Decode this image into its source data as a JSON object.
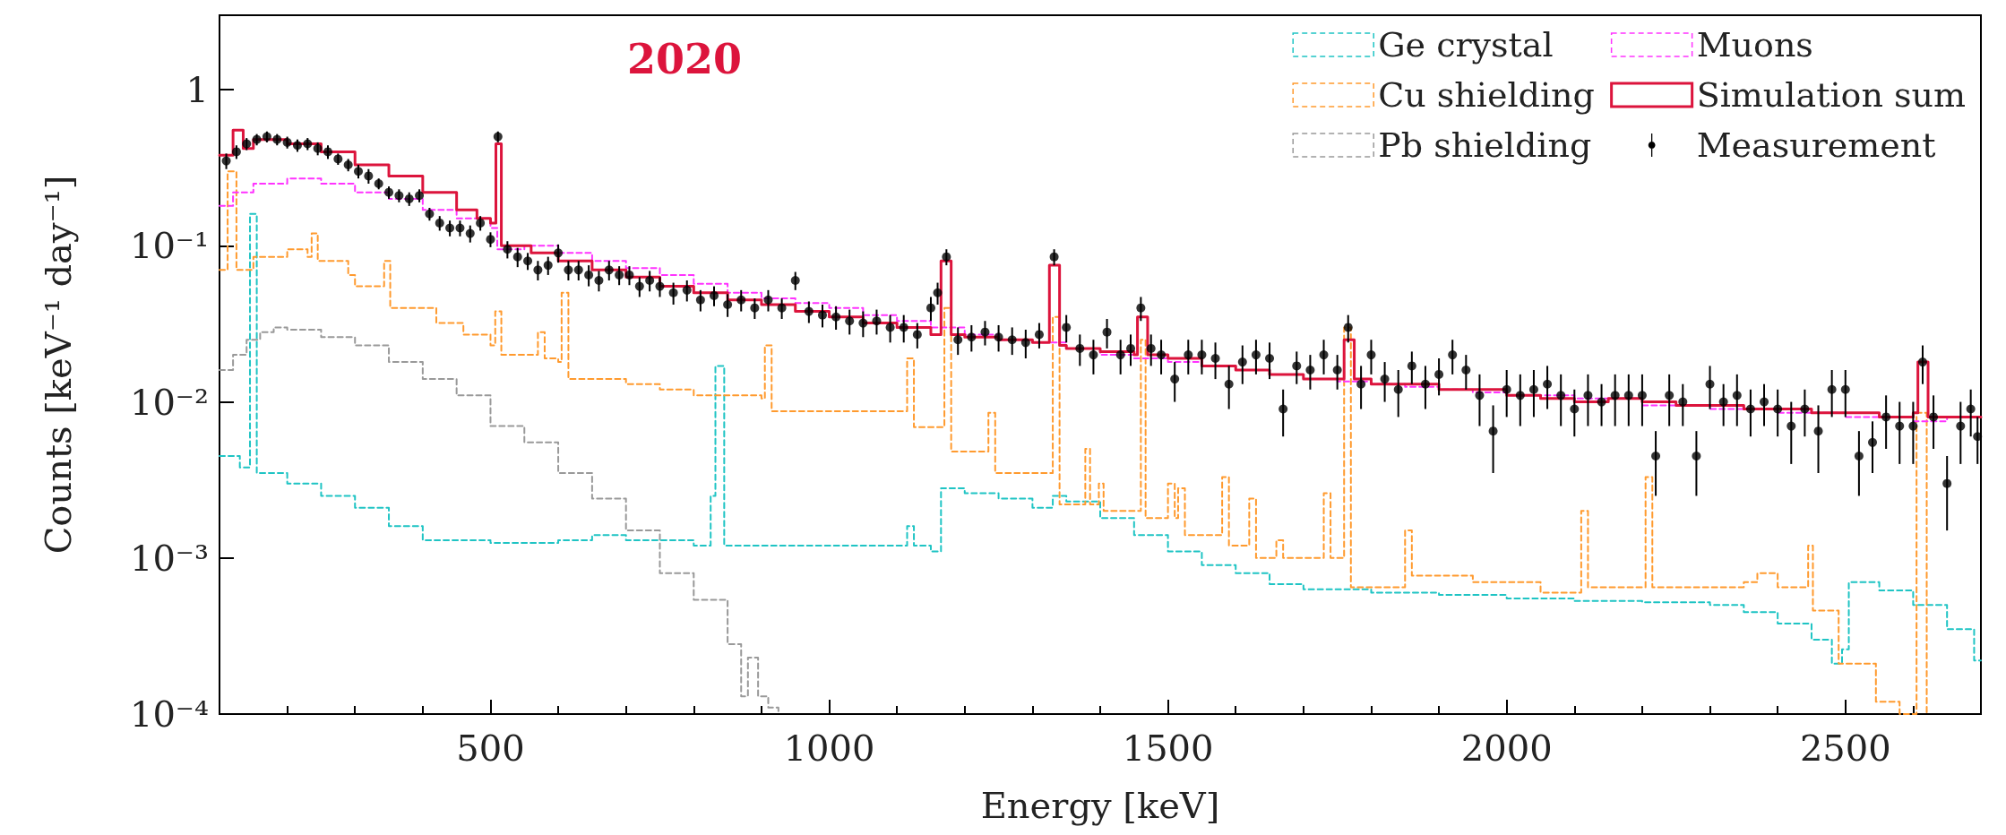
{
  "chart_data": {
    "type": "step",
    "title": "2020",
    "xlabel": "Energy [keV]",
    "ylabel": "Counts [keV⁻¹ day⁻¹]",
    "xlim": [
      100,
      2700
    ],
    "xticks": [
      {
        "value": 200,
        "label": null
      },
      {
        "value": 300,
        "label": null
      },
      {
        "value": 400,
        "label": null
      },
      500,
      {
        "value": 600,
        "label": null
      },
      {
        "value": 700,
        "label": null
      },
      {
        "value": 800,
        "label": null
      },
      {
        "value": 900,
        "label": null
      },
      1000,
      {
        "value": 1100,
        "label": null
      },
      {
        "value": 1200,
        "label": null
      },
      {
        "value": 1300,
        "label": null
      },
      {
        "value": 1400,
        "label": null
      },
      1500,
      {
        "value": 1600,
        "label": null
      },
      {
        "value": 1700,
        "label": null
      },
      {
        "value": 1800,
        "label": null
      },
      {
        "value": 1900,
        "label": null
      },
      2000,
      {
        "value": 2100,
        "label": null
      },
      {
        "value": 2200,
        "label": null
      },
      {
        "value": 2300,
        "label": null
      },
      {
        "value": 2400,
        "label": null
      },
      2500,
      {
        "value": 2600,
        "label": null
      }
    ],
    "ylim": [
      0.0001,
      3
    ],
    "yticks": [
      {
        "value": 0.0001,
        "label": "10⁻⁴"
      },
      {
        "value": 0.001,
        "label": "10⁻³"
      },
      {
        "value": 0.01,
        "label": "10⁻²"
      },
      {
        "value": 0.1,
        "label": "10⁻¹"
      },
      1
    ],
    "log": "y",
    "grid": false,
    "legend": "top right",
    "series": [
      {
        "name": "Ge crystal",
        "type": "step",
        "line_style": "dashed",
        "color": "#1fc4c4",
        "x": [
          100,
          130,
          145,
          155,
          200,
          250,
          300,
          350,
          400,
          500,
          600,
          650,
          700,
          800,
          825,
          832,
          845,
          900,
          1000,
          1100,
          1115,
          1125,
          1150,
          1165,
          1200,
          1250,
          1300,
          1330,
          1350,
          1400,
          1450,
          1500,
          1550,
          1600,
          1650,
          1700,
          1800,
          1900,
          2000,
          2100,
          2200,
          2300,
          2350,
          2400,
          2450,
          2480,
          2495,
          2505,
          2550,
          2600,
          2650,
          2690,
          2700
        ],
        "values": [
          0.0045,
          0.0038,
          0.16,
          0.0035,
          0.003,
          0.0025,
          0.0021,
          0.0016,
          0.0013,
          0.00125,
          0.0013,
          0.0014,
          0.0013,
          0.0012,
          0.0025,
          0.017,
          0.0012,
          0.0012,
          0.0012,
          0.0012,
          0.0016,
          0.0012,
          0.0011,
          0.0028,
          0.0026,
          0.0024,
          0.0021,
          0.0025,
          0.0023,
          0.0018,
          0.0014,
          0.0011,
          0.0009,
          0.0008,
          0.00068,
          0.00063,
          0.0006,
          0.00058,
          0.00055,
          0.00053,
          0.00052,
          0.0005,
          0.00045,
          0.00038,
          0.0003,
          0.00021,
          0.00026,
          0.0007,
          0.00062,
          0.0005,
          0.00035,
          0.00022,
          0.00022
        ]
      },
      {
        "name": "Cu shielding",
        "type": "step",
        "line_style": "dashed",
        "color": "#ff9a2e",
        "x": [
          100,
          112,
          125,
          150,
          200,
          230,
          236,
          245,
          290,
          300,
          343,
          352,
          420,
          460,
          500,
          507,
          516,
          565,
          570,
          580,
          600,
          605,
          615,
          700,
          750,
          800,
          900,
          905,
          915,
          1000,
          1110,
          1115,
          1125,
          1165,
          1170,
          1180,
          1230,
          1235,
          1245,
          1325,
          1330,
          1340,
          1375,
          1378,
          1385,
          1398,
          1405,
          1455,
          1460,
          1467,
          1495,
          1500,
          1510,
          1515,
          1525,
          1575,
          1580,
          1590,
          1615,
          1620,
          1630,
          1655,
          1660,
          1670,
          1725,
          1730,
          1740,
          1760,
          1770,
          1845,
          1850,
          1860,
          1950,
          2050,
          2105,
          2110,
          2120,
          2200,
          2205,
          2215,
          2350,
          2370,
          2400,
          2440,
          2445,
          2452,
          2490,
          2545,
          2580,
          2605,
          2620
        ],
        "values": [
          0.07,
          0.3,
          0.07,
          0.085,
          0.095,
          0.085,
          0.12,
          0.08,
          0.065,
          0.055,
          0.08,
          0.04,
          0.032,
          0.027,
          0.023,
          0.038,
          0.02,
          0.02,
          0.028,
          0.019,
          0.018,
          0.05,
          0.014,
          0.013,
          0.012,
          0.011,
          0.0105,
          0.023,
          0.0087,
          0.0087,
          0.0087,
          0.019,
          0.0069,
          0.0069,
          0.04,
          0.0048,
          0.0048,
          0.0085,
          0.0035,
          0.0035,
          0.035,
          0.0022,
          0.0022,
          0.005,
          0.0022,
          0.003,
          0.002,
          0.002,
          0.025,
          0.0018,
          0.0018,
          0.003,
          0.0018,
          0.0028,
          0.0014,
          0.0014,
          0.0033,
          0.0012,
          0.0012,
          0.0024,
          0.001,
          0.001,
          0.0013,
          0.001,
          0.001,
          0.0026,
          0.001,
          0.03,
          0.00065,
          0.00065,
          0.0015,
          0.00077,
          0.0007,
          0.0006,
          0.0006,
          0.002,
          0.00065,
          0.00065,
          0.0033,
          0.00065,
          0.0007,
          0.0008,
          0.00065,
          0.00065,
          0.0012,
          0.00046,
          0.00021,
          0.00012,
          0.0001,
          0.0085,
          0.0001
        ]
      },
      {
        "name": "Pb shielding",
        "type": "step",
        "line_style": "dashed",
        "color": "#999999",
        "x": [
          100,
          120,
          140,
          160,
          180,
          200,
          250,
          300,
          350,
          400,
          450,
          500,
          550,
          600,
          650,
          700,
          750,
          800,
          850,
          870,
          880,
          895,
          910,
          925
        ],
        "values": [
          0.016,
          0.02,
          0.025,
          0.028,
          0.03,
          0.029,
          0.026,
          0.023,
          0.018,
          0.014,
          0.011,
          0.007,
          0.0055,
          0.0035,
          0.0024,
          0.0015,
          0.0008,
          0.00054,
          0.00028,
          0.00013,
          0.00023,
          0.00013,
          0.00011,
          0.0001
        ]
      },
      {
        "name": "Muons",
        "type": "step",
        "line_style": "dashed",
        "color": "#ff33ff",
        "x": [
          100,
          120,
          150,
          200,
          250,
          300,
          350,
          400,
          450,
          500,
          510,
          550,
          600,
          650,
          700,
          750,
          800,
          850,
          900,
          950,
          1000,
          1050,
          1100,
          1150,
          1200,
          1250,
          1300,
          1350,
          1400,
          1450,
          1500,
          1550,
          1600,
          1650,
          1700,
          1750,
          1800,
          1850,
          1900,
          1950,
          2000,
          2100,
          2200,
          2300,
          2400,
          2500,
          2600,
          2650,
          2700
        ],
        "values": [
          0.18,
          0.22,
          0.25,
          0.27,
          0.25,
          0.22,
          0.2,
          0.17,
          0.15,
          0.13,
          0.095,
          0.1,
          0.09,
          0.08,
          0.072,
          0.065,
          0.057,
          0.05,
          0.046,
          0.043,
          0.04,
          0.036,
          0.033,
          0.03,
          0.027,
          0.025,
          0.024,
          0.022,
          0.02,
          0.019,
          0.018,
          0.017,
          0.016,
          0.015,
          0.014,
          0.0135,
          0.013,
          0.0125,
          0.012,
          0.0115,
          0.011,
          0.0105,
          0.0095,
          0.009,
          0.0085,
          0.008,
          0.0075,
          0.008,
          0.008
        ]
      },
      {
        "name": "Simulation sum",
        "type": "step",
        "line_style": "solid",
        "color": "#dc143c",
        "x": [
          100,
          120,
          135,
          150,
          200,
          250,
          300,
          350,
          400,
          450,
          480,
          500,
          508,
          516,
          560,
          600,
          650,
          700,
          750,
          800,
          850,
          900,
          950,
          1000,
          1050,
          1100,
          1150,
          1165,
          1180,
          1200,
          1250,
          1300,
          1325,
          1340,
          1350,
          1400,
          1450,
          1455,
          1470,
          1500,
          1550,
          1600,
          1650,
          1700,
          1750,
          1760,
          1775,
          1800,
          1850,
          1900,
          1950,
          2000,
          2050,
          2100,
          2150,
          2200,
          2250,
          2300,
          2350,
          2400,
          2450,
          2500,
          2550,
          2600,
          2607,
          2622,
          2650,
          2700
        ],
        "values": [
          0.38,
          0.55,
          0.42,
          0.48,
          0.45,
          0.4,
          0.33,
          0.28,
          0.22,
          0.17,
          0.15,
          0.14,
          0.45,
          0.1,
          0.09,
          0.08,
          0.07,
          0.063,
          0.055,
          0.05,
          0.045,
          0.042,
          0.038,
          0.035,
          0.032,
          0.03,
          0.027,
          0.08,
          0.027,
          0.026,
          0.025,
          0.024,
          0.075,
          0.023,
          0.022,
          0.021,
          0.02,
          0.035,
          0.02,
          0.019,
          0.017,
          0.016,
          0.015,
          0.014,
          0.014,
          0.025,
          0.014,
          0.013,
          0.013,
          0.012,
          0.012,
          0.011,
          0.0105,
          0.01,
          0.0105,
          0.01,
          0.0095,
          0.0095,
          0.009,
          0.009,
          0.0085,
          0.0085,
          0.008,
          0.0085,
          0.018,
          0.008,
          0.008,
          0.008
        ]
      },
      {
        "name": "Measurement",
        "type": "scatter",
        "marker": "circle",
        "color": "#000000",
        "x": [
          110,
          125,
          140,
          155,
          170,
          185,
          200,
          215,
          230,
          245,
          260,
          275,
          290,
          305,
          320,
          335,
          350,
          365,
          380,
          395,
          410,
          425,
          440,
          455,
          470,
          485,
          500,
          511,
          525,
          540,
          555,
          570,
          585,
          600,
          615,
          630,
          645,
          660,
          675,
          690,
          705,
          720,
          735,
          750,
          770,
          790,
          810,
          830,
          850,
          870,
          890,
          910,
          930,
          950,
          970,
          990,
          1010,
          1030,
          1050,
          1070,
          1090,
          1110,
          1130,
          1150,
          1160,
          1173,
          1190,
          1210,
          1230,
          1250,
          1270,
          1290,
          1310,
          1332,
          1350,
          1370,
          1390,
          1410,
          1430,
          1445,
          1460,
          1475,
          1490,
          1510,
          1530,
          1550,
          1570,
          1590,
          1610,
          1630,
          1650,
          1670,
          1690,
          1710,
          1730,
          1750,
          1766,
          1785,
          1800,
          1820,
          1840,
          1860,
          1880,
          1900,
          1920,
          1940,
          1960,
          1980,
          2000,
          2020,
          2040,
          2060,
          2080,
          2100,
          2120,
          2140,
          2160,
          2180,
          2200,
          2220,
          2240,
          2260,
          2280,
          2300,
          2320,
          2340,
          2360,
          2380,
          2400,
          2420,
          2440,
          2460,
          2480,
          2500,
          2520,
          2540,
          2560,
          2580,
          2600,
          2614,
          2630,
          2650,
          2670,
          2685,
          2695
        ],
        "values": [
          0.35,
          0.4,
          0.45,
          0.48,
          0.5,
          0.48,
          0.46,
          0.44,
          0.45,
          0.42,
          0.4,
          0.36,
          0.33,
          0.3,
          0.28,
          0.25,
          0.22,
          0.21,
          0.2,
          0.21,
          0.16,
          0.14,
          0.13,
          0.13,
          0.12,
          0.14,
          0.11,
          0.5,
          0.095,
          0.085,
          0.08,
          0.07,
          0.075,
          0.09,
          0.07,
          0.07,
          0.065,
          0.06,
          0.07,
          0.065,
          0.065,
          0.055,
          0.06,
          0.055,
          0.05,
          0.052,
          0.045,
          0.048,
          0.042,
          0.045,
          0.04,
          0.045,
          0.04,
          0.06,
          0.038,
          0.036,
          0.035,
          0.033,
          0.032,
          0.033,
          0.03,
          0.03,
          0.027,
          0.04,
          0.05,
          0.085,
          0.025,
          0.026,
          0.028,
          0.026,
          0.025,
          0.024,
          0.027,
          0.085,
          0.03,
          0.022,
          0.02,
          0.028,
          0.02,
          0.022,
          0.04,
          0.022,
          0.02,
          0.014,
          0.02,
          0.02,
          0.019,
          0.013,
          0.018,
          0.02,
          0.019,
          0.009,
          0.017,
          0.016,
          0.02,
          0.016,
          0.03,
          0.013,
          0.02,
          0.014,
          0.012,
          0.017,
          0.013,
          0.015,
          0.02,
          0.016,
          0.011,
          0.0065,
          0.012,
          0.011,
          0.012,
          0.013,
          0.011,
          0.009,
          0.011,
          0.01,
          0.011,
          0.011,
          0.011,
          0.0045,
          0.011,
          0.01,
          0.0045,
          0.013,
          0.01,
          0.011,
          0.009,
          0.01,
          0.009,
          0.007,
          0.009,
          0.0065,
          0.012,
          0.012,
          0.0045,
          0.0055,
          0.008,
          0.007,
          0.007,
          0.018,
          0.008,
          0.003,
          0.007,
          0.009,
          0.006
        ],
        "errors": [
          0.04,
          0.04,
          0.04,
          0.04,
          0.04,
          0.04,
          0.04,
          0.04,
          0.04,
          0.04,
          0.04,
          0.03,
          0.03,
          0.03,
          0.03,
          0.02,
          0.02,
          0.02,
          0.02,
          0.02,
          0.015,
          0.015,
          0.015,
          0.015,
          0.015,
          0.015,
          0.012,
          0.04,
          0.012,
          0.012,
          0.01,
          0.01,
          0.01,
          0.012,
          0.01,
          0.01,
          0.01,
          0.009,
          0.01,
          0.009,
          0.009,
          0.008,
          0.009,
          0.008,
          0.008,
          0.008,
          0.007,
          0.007,
          0.007,
          0.007,
          0.006,
          0.007,
          0.006,
          0.008,
          0.006,
          0.006,
          0.006,
          0.006,
          0.006,
          0.006,
          0.006,
          0.006,
          0.005,
          0.007,
          0.008,
          0.01,
          0.005,
          0.005,
          0.005,
          0.005,
          0.005,
          0.005,
          0.005,
          0.01,
          0.006,
          0.005,
          0.005,
          0.006,
          0.005,
          0.005,
          0.007,
          0.005,
          0.005,
          0.004,
          0.005,
          0.005,
          0.005,
          0.004,
          0.005,
          0.005,
          0.005,
          0.003,
          0.004,
          0.004,
          0.005,
          0.004,
          0.006,
          0.004,
          0.005,
          0.004,
          0.004,
          0.004,
          0.004,
          0.004,
          0.005,
          0.004,
          0.004,
          0.003,
          0.004,
          0.004,
          0.004,
          0.004,
          0.004,
          0.003,
          0.004,
          0.003,
          0.004,
          0.004,
          0.004,
          0.002,
          0.004,
          0.003,
          0.002,
          0.004,
          0.003,
          0.004,
          0.003,
          0.003,
          0.003,
          0.003,
          0.003,
          0.003,
          0.004,
          0.004,
          0.002,
          0.002,
          0.003,
          0.003,
          0.003,
          0.005,
          0.003,
          0.0015,
          0.003,
          0.003,
          0.002
        ]
      }
    ]
  }
}
